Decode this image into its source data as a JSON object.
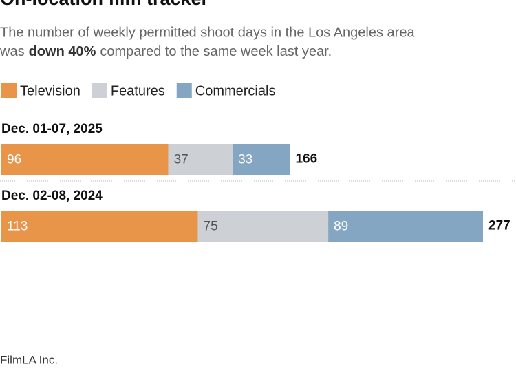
{
  "chart_data": {
    "type": "stacked-bar-horizontal",
    "title": "On-location film tracker",
    "subtitle": {
      "line1": "The number of weekly permitted shoot days in the Los Angeles area",
      "line2": [
        "was",
        "down 40%",
        "compared to the same week last year."
      ]
    },
    "categories": [
      "Dec. 01-07, 2025",
      "Dec. 02-08, 2024"
    ],
    "series": [
      {
        "name": "Television",
        "color": "#e8954a",
        "values": [
          96,
          113
        ]
      },
      {
        "name": "Features",
        "color": "#cdd0d4",
        "values": [
          37,
          75
        ]
      },
      {
        "name": "Commercials",
        "color": "#84a6c2",
        "values": [
          33,
          89
        ]
      }
    ],
    "totals": [
      166,
      277
    ],
    "source": "FilmLA Inc."
  }
}
